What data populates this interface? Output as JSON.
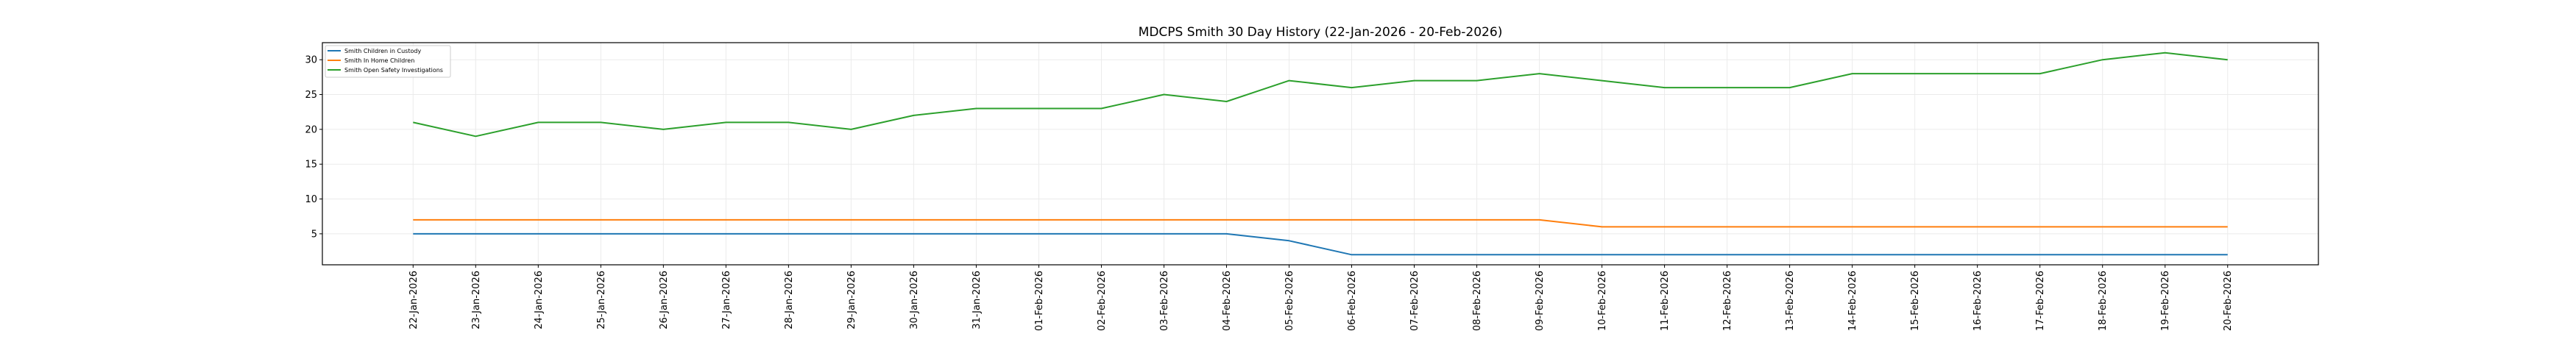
{
  "chart_data": {
    "type": "line",
    "title": "MDCPS Smith 30 Day History (22-Jan-2026 - 20-Feb-2026)",
    "xlabel": "",
    "ylabel": "",
    "ylim": [
      0.55,
      32.45
    ],
    "yticks": [
      5,
      10,
      15,
      20,
      25,
      30
    ],
    "grid": true,
    "legend_position": "top-left",
    "categories": [
      "22-Jan-2026",
      "23-Jan-2026",
      "24-Jan-2026",
      "25-Jan-2026",
      "26-Jan-2026",
      "27-Jan-2026",
      "28-Jan-2026",
      "29-Jan-2026",
      "30-Jan-2026",
      "31-Jan-2026",
      "01-Feb-2026",
      "02-Feb-2026",
      "03-Feb-2026",
      "04-Feb-2026",
      "05-Feb-2026",
      "06-Feb-2026",
      "07-Feb-2026",
      "08-Feb-2026",
      "09-Feb-2026",
      "10-Feb-2026",
      "11-Feb-2026",
      "12-Feb-2026",
      "13-Feb-2026",
      "14-Feb-2026",
      "15-Feb-2026",
      "16-Feb-2026",
      "17-Feb-2026",
      "18-Feb-2026",
      "19-Feb-2026",
      "20-Feb-2026"
    ],
    "series": [
      {
        "name": "Smith Children in Custody",
        "color": "#1f77b4",
        "values": [
          5,
          5,
          5,
          5,
          5,
          5,
          5,
          5,
          5,
          5,
          5,
          5,
          5,
          5,
          4,
          2,
          2,
          2,
          2,
          2,
          2,
          2,
          2,
          2,
          2,
          2,
          2,
          2,
          2,
          2
        ]
      },
      {
        "name": "Smith In Home Children",
        "color": "#ff7f0e",
        "values": [
          7,
          7,
          7,
          7,
          7,
          7,
          7,
          7,
          7,
          7,
          7,
          7,
          7,
          7,
          7,
          7,
          7,
          7,
          7,
          6,
          6,
          6,
          6,
          6,
          6,
          6,
          6,
          6,
          6,
          6
        ]
      },
      {
        "name": "Smith Open Safety Investigations",
        "color": "#2ca02c",
        "values": [
          21,
          19,
          21,
          21,
          20,
          21,
          21,
          20,
          22,
          23,
          23,
          23,
          25,
          24,
          27,
          26,
          27,
          27,
          28,
          27,
          26,
          26,
          26,
          28,
          28,
          28,
          28,
          30,
          31,
          30
        ]
      }
    ]
  }
}
